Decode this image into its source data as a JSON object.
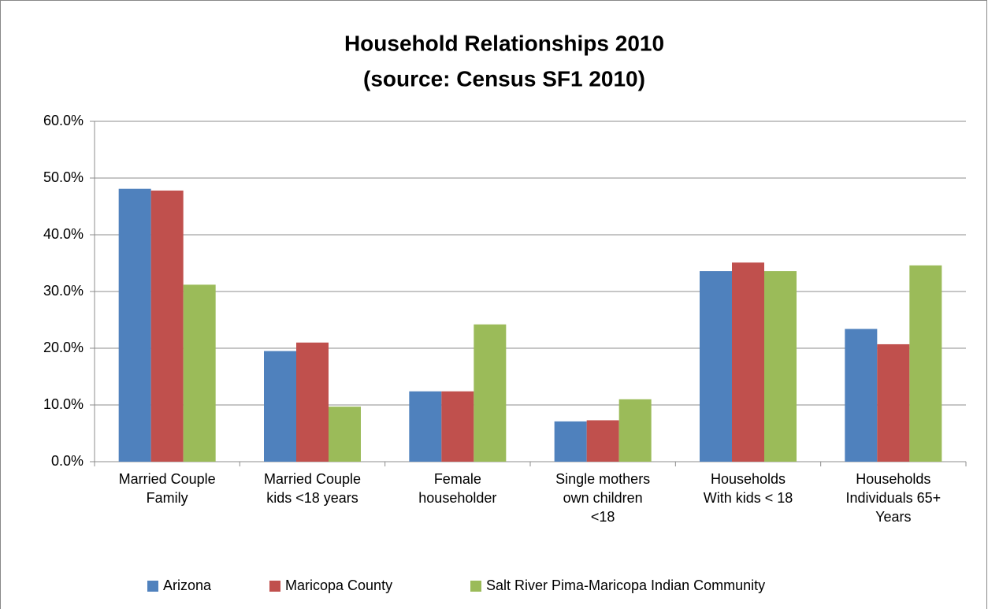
{
  "chart_data": {
    "type": "bar",
    "title": "Household Relationships 2010",
    "subtitle": "(source: Census SF1 2010)",
    "categories": [
      "Married Couple\nFamily",
      "Married Couple\nkids <18 years",
      "Female\nhouseholder",
      "Single mothers\nown children\n<18",
      "Households\nWith kids < 18",
      "Households\nIndividuals 65+\nYears"
    ],
    "series": [
      {
        "name": "Arizona",
        "color": "#4f81bd",
        "values": [
          48.1,
          19.5,
          12.4,
          7.1,
          33.6,
          23.4
        ]
      },
      {
        "name": "Maricopa County",
        "color": "#c0504d",
        "values": [
          47.8,
          21.0,
          12.4,
          7.3,
          35.1,
          20.7
        ]
      },
      {
        "name": "Salt River Pima-Maricopa Indian Community",
        "color": "#9bbb59",
        "values": [
          31.2,
          9.7,
          24.2,
          11.0,
          33.6,
          34.6
        ]
      }
    ],
    "ylim": [
      0,
      60
    ],
    "yticks": [
      {
        "value": 0,
        "label": "0.0%"
      },
      {
        "value": 10,
        "label": "10.0%"
      },
      {
        "value": 20,
        "label": "20.0%"
      },
      {
        "value": 30,
        "label": "30.0%"
      },
      {
        "value": 40,
        "label": "40.0%"
      },
      {
        "value": 50,
        "label": "50.0%"
      },
      {
        "value": 60,
        "label": "60.0%"
      }
    ],
    "grid": true,
    "legend": "bottom"
  }
}
